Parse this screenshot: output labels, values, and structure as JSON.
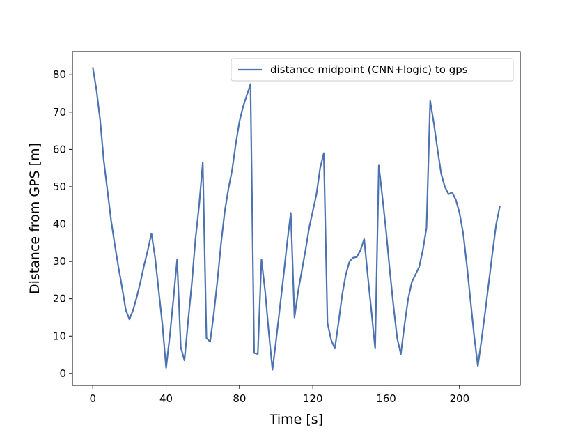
{
  "chart_data": {
    "type": "line",
    "x_label": "Time [s]",
    "y_label": "Distance from GPS [m]",
    "x": [
      0,
      2,
      4,
      6,
      8,
      10,
      12,
      14,
      16,
      18,
      20,
      22,
      24,
      26,
      28,
      30,
      32,
      34,
      36,
      38,
      40,
      42,
      44,
      46,
      48,
      50,
      52,
      54,
      56,
      58,
      60,
      62,
      64,
      66,
      68,
      70,
      72,
      74,
      76,
      78,
      80,
      82,
      84,
      86,
      88,
      90,
      92,
      94,
      96,
      98,
      100,
      102,
      104,
      106,
      108,
      110,
      112,
      114,
      116,
      118,
      120,
      122,
      124,
      126,
      128,
      130,
      132,
      134,
      136,
      138,
      140,
      142,
      144,
      146,
      148,
      150,
      152,
      154,
      156,
      158,
      160,
      162,
      164,
      166,
      168,
      170,
      172,
      174,
      176,
      178,
      180,
      182,
      184,
      186,
      188,
      190,
      192,
      194,
      196,
      198,
      200,
      202,
      204,
      206,
      208,
      210,
      212,
      214,
      216,
      218,
      220,
      222
    ],
    "series": [
      {
        "name": "distance midpoint (CNN+logic) to gps",
        "color": "#4c72b0",
        "values": [
          82,
          76,
          68,
          57,
          49,
          41,
          34.5,
          28.5,
          23,
          17,
          14.5,
          17,
          20.5,
          24.5,
          29,
          33,
          37.5,
          31,
          22,
          13,
          1.5,
          10,
          20,
          30.5,
          7,
          3.5,
          14,
          24,
          36,
          45,
          56.5,
          9.5,
          8.5,
          16,
          25,
          35,
          43.5,
          49.5,
          54.5,
          61.5,
          67.5,
          71.5,
          74.5,
          77.5,
          5.5,
          5.2,
          30.5,
          22,
          11,
          1,
          9,
          17.5,
          26,
          35,
          43,
          15,
          22,
          27.5,
          33,
          39,
          43.5,
          48,
          55,
          59,
          13.5,
          9,
          6.7,
          13.5,
          21,
          26.5,
          30,
          31,
          31.2,
          33,
          36,
          26,
          16.5,
          6.7,
          55.7,
          47,
          38,
          27.5,
          18,
          9.5,
          5.2,
          13,
          20,
          24.5,
          26.5,
          28.5,
          33,
          39,
          73,
          67,
          60,
          53.5,
          50,
          48,
          48.5,
          46.5,
          43,
          37.5,
          29,
          19.5,
          10,
          2,
          9,
          16.5,
          24.5,
          32.5,
          40,
          44.8
        ]
      }
    ],
    "xlim": [
      -11.1,
      233.1
    ],
    "xticks": [
      0,
      40,
      80,
      120,
      160,
      200
    ],
    "ylim": [
      -3.2,
      86.2
    ],
    "yticks": [
      0,
      10,
      20,
      30,
      40,
      50,
      60,
      70,
      80
    ],
    "legend": "upper right"
  }
}
